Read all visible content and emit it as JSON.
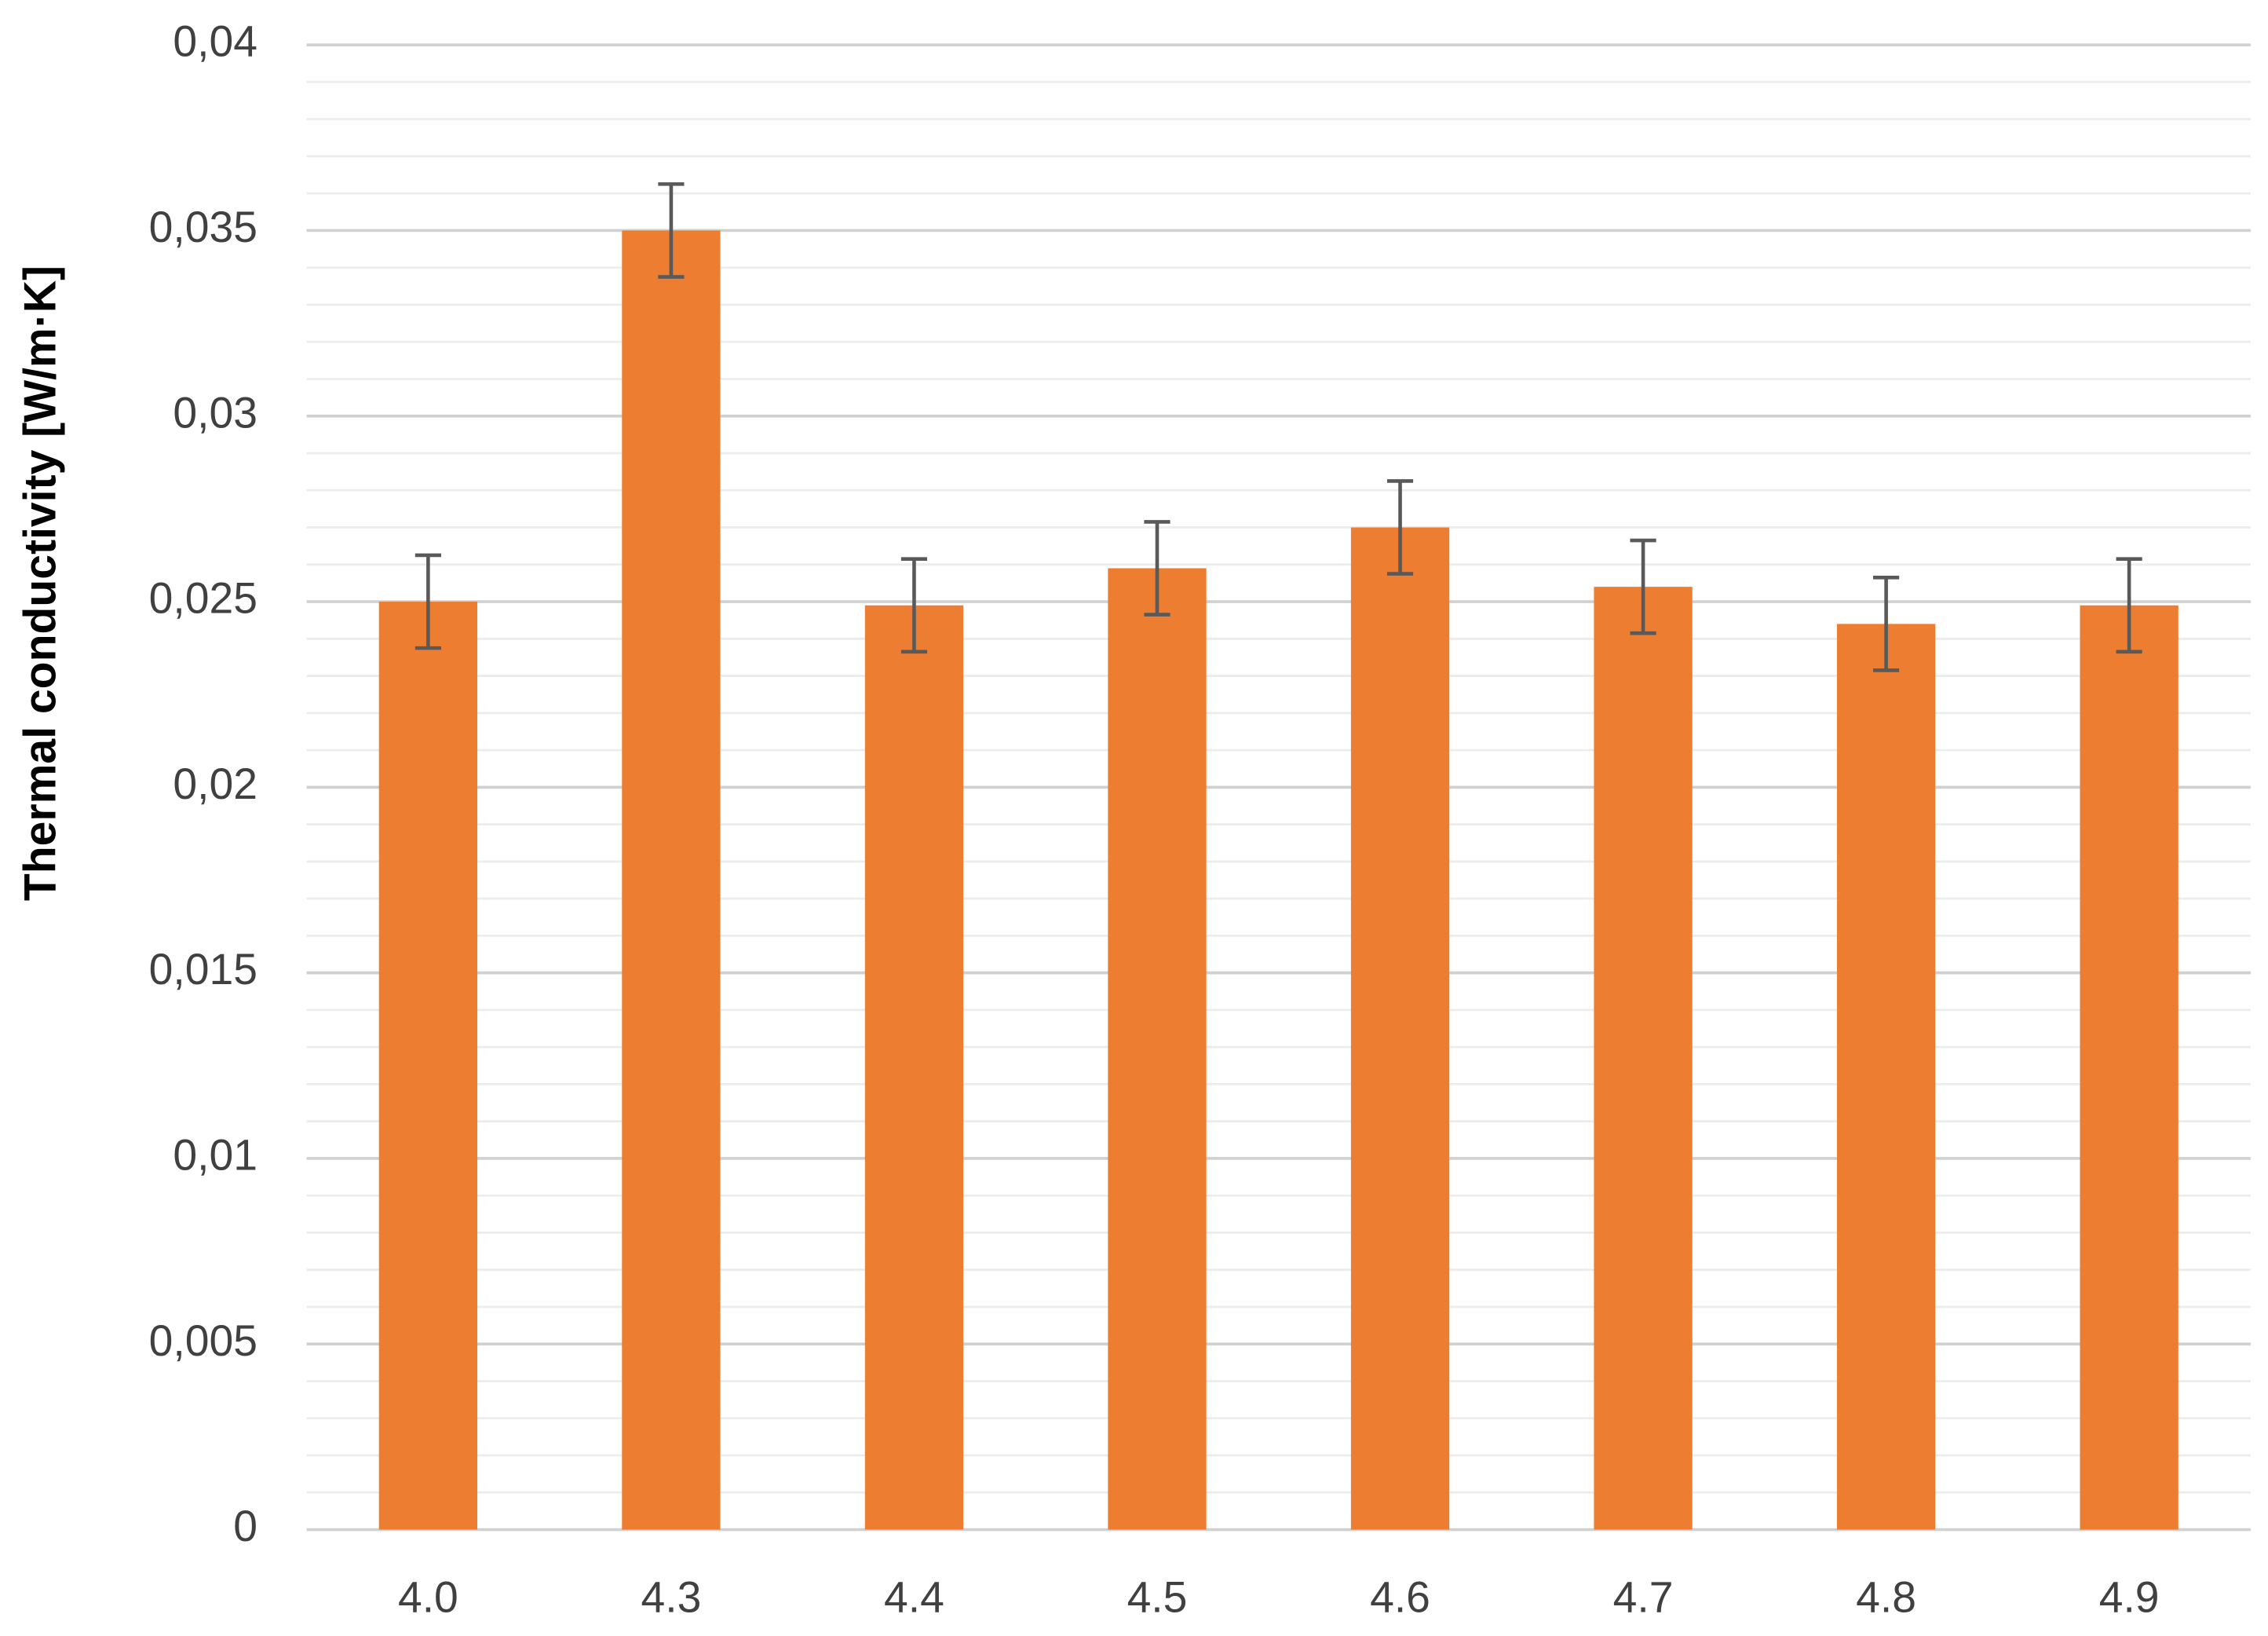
{
  "chart_data": {
    "type": "bar",
    "y_label": "Thermal conductivity [W/m·K]",
    "categories": [
      "4.0",
      "4.3",
      "4.4",
      "4.5",
      "4.6",
      "4.7",
      "4.8",
      "4.9"
    ],
    "values": [
      0.025,
      0.035,
      0.0249,
      0.0259,
      0.027,
      0.0254,
      0.0244,
      0.0249
    ],
    "errors": [
      0.00125,
      0.00125,
      0.00125,
      0.00125,
      0.00125,
      0.00125,
      0.00125,
      0.00125
    ],
    "color": "#ed7d31",
    "error_color": "#595959",
    "ylim": [
      0,
      0.04
    ],
    "yticks": [
      0,
      {
        "value": 0.005,
        "label": "0,005"
      },
      {
        "value": 0.01,
        "label": "0,01"
      },
      {
        "value": 0.015,
        "label": "0,015"
      },
      {
        "value": 0.02,
        "label": "0,02"
      },
      {
        "value": 0.025,
        "label": "0,025"
      },
      {
        "value": 0.03,
        "label": "0,03"
      },
      {
        "value": 0.035,
        "label": "0,035"
      },
      {
        "value": 0.04,
        "label": "0,04"
      }
    ],
    "grid": true,
    "minor_grid": true
  }
}
